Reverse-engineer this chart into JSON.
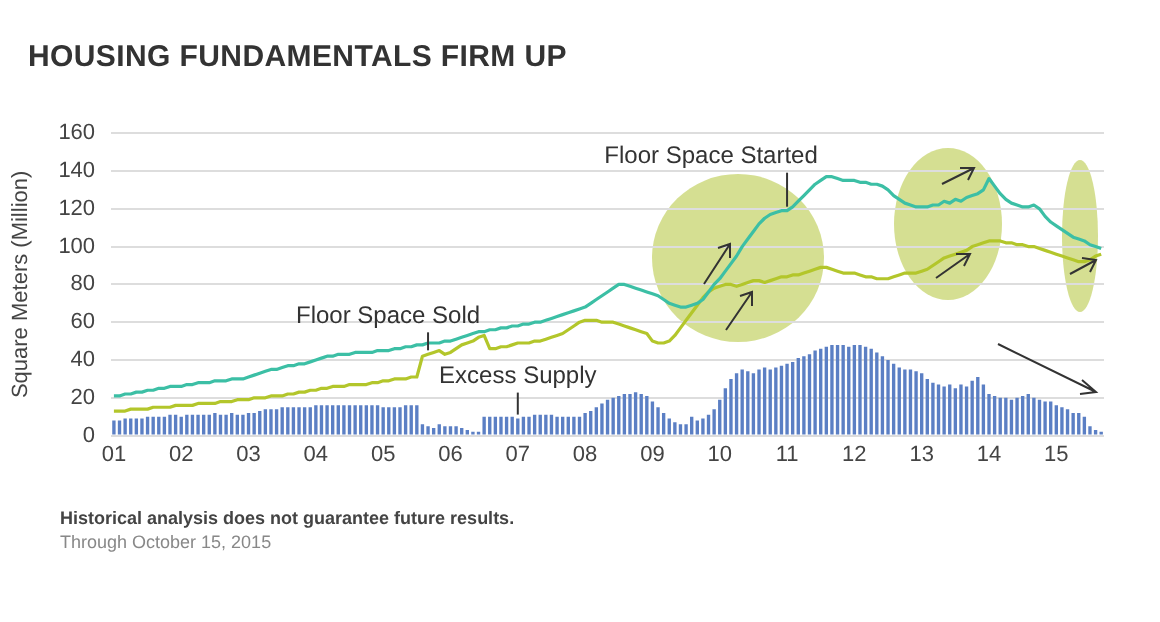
{
  "chart_data": {
    "type": "bar",
    "title": "HOUSING FUNDAMENTALS FIRM UP",
    "ylabel": "Square Meters (Million)",
    "categories": [
      "01",
      null,
      null,
      null,
      null,
      null,
      null,
      null,
      null,
      null,
      null,
      null,
      "02",
      null,
      null,
      null,
      null,
      null,
      null,
      null,
      null,
      null,
      null,
      null,
      "03",
      null,
      null,
      null,
      null,
      null,
      null,
      null,
      null,
      null,
      null,
      null,
      "04",
      null,
      null,
      null,
      null,
      null,
      null,
      null,
      null,
      null,
      null,
      null,
      "05",
      null,
      null,
      null,
      null,
      null,
      null,
      null,
      null,
      null,
      null,
      null,
      "06",
      null,
      null,
      null,
      null,
      null,
      null,
      null,
      null,
      null,
      null,
      null,
      "07",
      null,
      null,
      null,
      null,
      null,
      null,
      null,
      null,
      null,
      null,
      null,
      "08",
      null,
      null,
      null,
      null,
      null,
      null,
      null,
      null,
      null,
      null,
      null,
      "09",
      null,
      null,
      null,
      null,
      null,
      null,
      null,
      null,
      null,
      null,
      null,
      "10",
      null,
      null,
      null,
      null,
      null,
      null,
      null,
      null,
      null,
      null,
      null,
      "11",
      null,
      null,
      null,
      null,
      null,
      null,
      null,
      null,
      null,
      null,
      null,
      "12",
      null,
      null,
      null,
      null,
      null,
      null,
      null,
      null,
      null,
      null,
      null,
      "13",
      null,
      null,
      null,
      null,
      null,
      null,
      null,
      null,
      null,
      null,
      null,
      "14",
      null,
      null,
      null,
      null,
      null,
      null,
      null,
      null,
      null,
      null,
      null,
      "15",
      null,
      null,
      null,
      null,
      null,
      null,
      null,
      null
    ],
    "series": [
      {
        "name": "Excess Supply",
        "color": "#5b7fc4",
        "values": [
          8,
          8,
          9,
          9,
          9,
          9,
          10,
          10,
          10,
          10,
          11,
          11,
          10,
          11,
          11,
          11,
          11,
          11,
          12,
          11,
          11,
          12,
          11,
          11,
          12,
          12,
          13,
          14,
          14,
          14,
          15,
          15,
          15,
          15,
          15,
          15,
          16,
          16,
          16,
          16,
          16,
          16,
          16,
          16,
          16,
          16,
          16,
          16,
          15,
          15,
          15,
          15,
          16,
          16,
          16,
          6,
          5,
          4,
          6,
          5,
          5,
          5,
          4,
          3,
          2,
          2,
          10,
          10,
          10,
          10,
          10,
          10,
          9,
          10,
          10,
          11,
          11,
          11,
          11,
          10,
          10,
          10,
          10,
          10,
          12,
          13,
          15,
          17,
          19,
          20,
          21,
          22,
          22,
          23,
          22,
          21,
          18,
          15,
          12,
          9,
          7,
          6,
          6,
          10,
          8,
          9,
          11,
          14,
          19,
          25,
          30,
          33,
          35,
          34,
          33,
          35,
          36,
          35,
          36,
          37,
          38,
          39,
          41,
          42,
          43,
          45,
          46,
          47,
          48,
          48,
          48,
          47,
          48,
          48,
          47,
          46,
          44,
          42,
          40,
          38,
          36,
          35,
          35,
          34,
          33,
          30,
          28,
          27,
          26,
          27,
          25,
          27,
          26,
          29,
          31,
          27,
          22,
          21,
          20,
          20,
          19,
          20,
          21,
          22,
          20,
          19,
          18,
          18,
          16,
          15,
          14,
          12,
          12,
          10,
          5,
          3,
          2
        ]
      },
      {
        "name": "Floor Space Started",
        "type": "line",
        "color": "#3cbfa5",
        "values": [
          21,
          21,
          22,
          22,
          23,
          23,
          24,
          24,
          25,
          25,
          26,
          26,
          26,
          27,
          27,
          28,
          28,
          28,
          29,
          29,
          29,
          30,
          30,
          30,
          31,
          32,
          33,
          34,
          35,
          35,
          36,
          37,
          37,
          38,
          38,
          39,
          40,
          41,
          42,
          42,
          43,
          43,
          43,
          44,
          44,
          44,
          44,
          45,
          45,
          45,
          46,
          46,
          47,
          47,
          48,
          48,
          49,
          49,
          49,
          50,
          50,
          51,
          52,
          53,
          54,
          55,
          55,
          56,
          56,
          57,
          57,
          58,
          58,
          59,
          59,
          60,
          60,
          61,
          62,
          63,
          64,
          65,
          66,
          67,
          68,
          70,
          72,
          74,
          76,
          78,
          80,
          80,
          79,
          78,
          77,
          76,
          75,
          74,
          72,
          70,
          69,
          68,
          68,
          69,
          70,
          72,
          76,
          80,
          83,
          87,
          91,
          95,
          100,
          104,
          108,
          112,
          115,
          117,
          118,
          119,
          119,
          121,
          124,
          127,
          130,
          133,
          135,
          137,
          137,
          136,
          135,
          135,
          135,
          134,
          134,
          133,
          133,
          132,
          130,
          127,
          125,
          123,
          122,
          121,
          121,
          121,
          122,
          122,
          124,
          123,
          125,
          124,
          126,
          127,
          128,
          130,
          136,
          132,
          128,
          125,
          123,
          122,
          121,
          121,
          122,
          120,
          116,
          113,
          111,
          109,
          107,
          105,
          104,
          103,
          101,
          100,
          99
        ]
      },
      {
        "name": "Floor Space Sold",
        "type": "line",
        "color": "#b3c62b",
        "values": [
          13,
          13,
          13,
          14,
          14,
          14,
          14,
          15,
          15,
          15,
          15,
          16,
          16,
          16,
          16,
          17,
          17,
          17,
          17,
          18,
          18,
          18,
          19,
          19,
          19,
          20,
          20,
          20,
          21,
          21,
          21,
          22,
          22,
          23,
          23,
          24,
          24,
          25,
          25,
          26,
          26,
          26,
          27,
          27,
          27,
          27,
          28,
          28,
          29,
          29,
          30,
          30,
          30,
          31,
          31,
          42,
          43,
          44,
          45,
          43,
          44,
          46,
          48,
          49,
          50,
          52,
          53,
          46,
          46,
          47,
          47,
          48,
          49,
          49,
          49,
          50,
          50,
          51,
          52,
          53,
          54,
          56,
          58,
          60,
          61,
          61,
          61,
          60,
          60,
          60,
          59,
          58,
          57,
          56,
          55,
          54,
          50,
          49,
          49,
          50,
          53,
          57,
          61,
          65,
          69,
          73,
          76,
          78,
          79,
          80,
          80,
          79,
          80,
          81,
          82,
          82,
          81,
          82,
          83,
          84,
          84,
          85,
          85,
          86,
          87,
          88,
          89,
          89,
          88,
          87,
          86,
          86,
          86,
          85,
          84,
          84,
          83,
          83,
          83,
          84,
          85,
          86,
          86,
          86,
          87,
          88,
          90,
          92,
          94,
          95,
          96,
          97,
          98,
          100,
          101,
          102,
          103,
          103,
          103,
          102,
          102,
          101,
          101,
          100,
          100,
          99,
          98,
          97,
          96,
          95,
          94,
          93,
          92,
          92,
          93,
          95,
          96
        ]
      }
    ],
    "ylim": [
      0,
      160
    ],
    "yticks": [
      0,
      20,
      40,
      60,
      80,
      100,
      120,
      140,
      160
    ],
    "grid": "y",
    "legend": false,
    "marker": "none",
    "annotations": [
      "Historical analysis does not guarantee future results.",
      "Through October 15, 2015"
    ]
  }
}
